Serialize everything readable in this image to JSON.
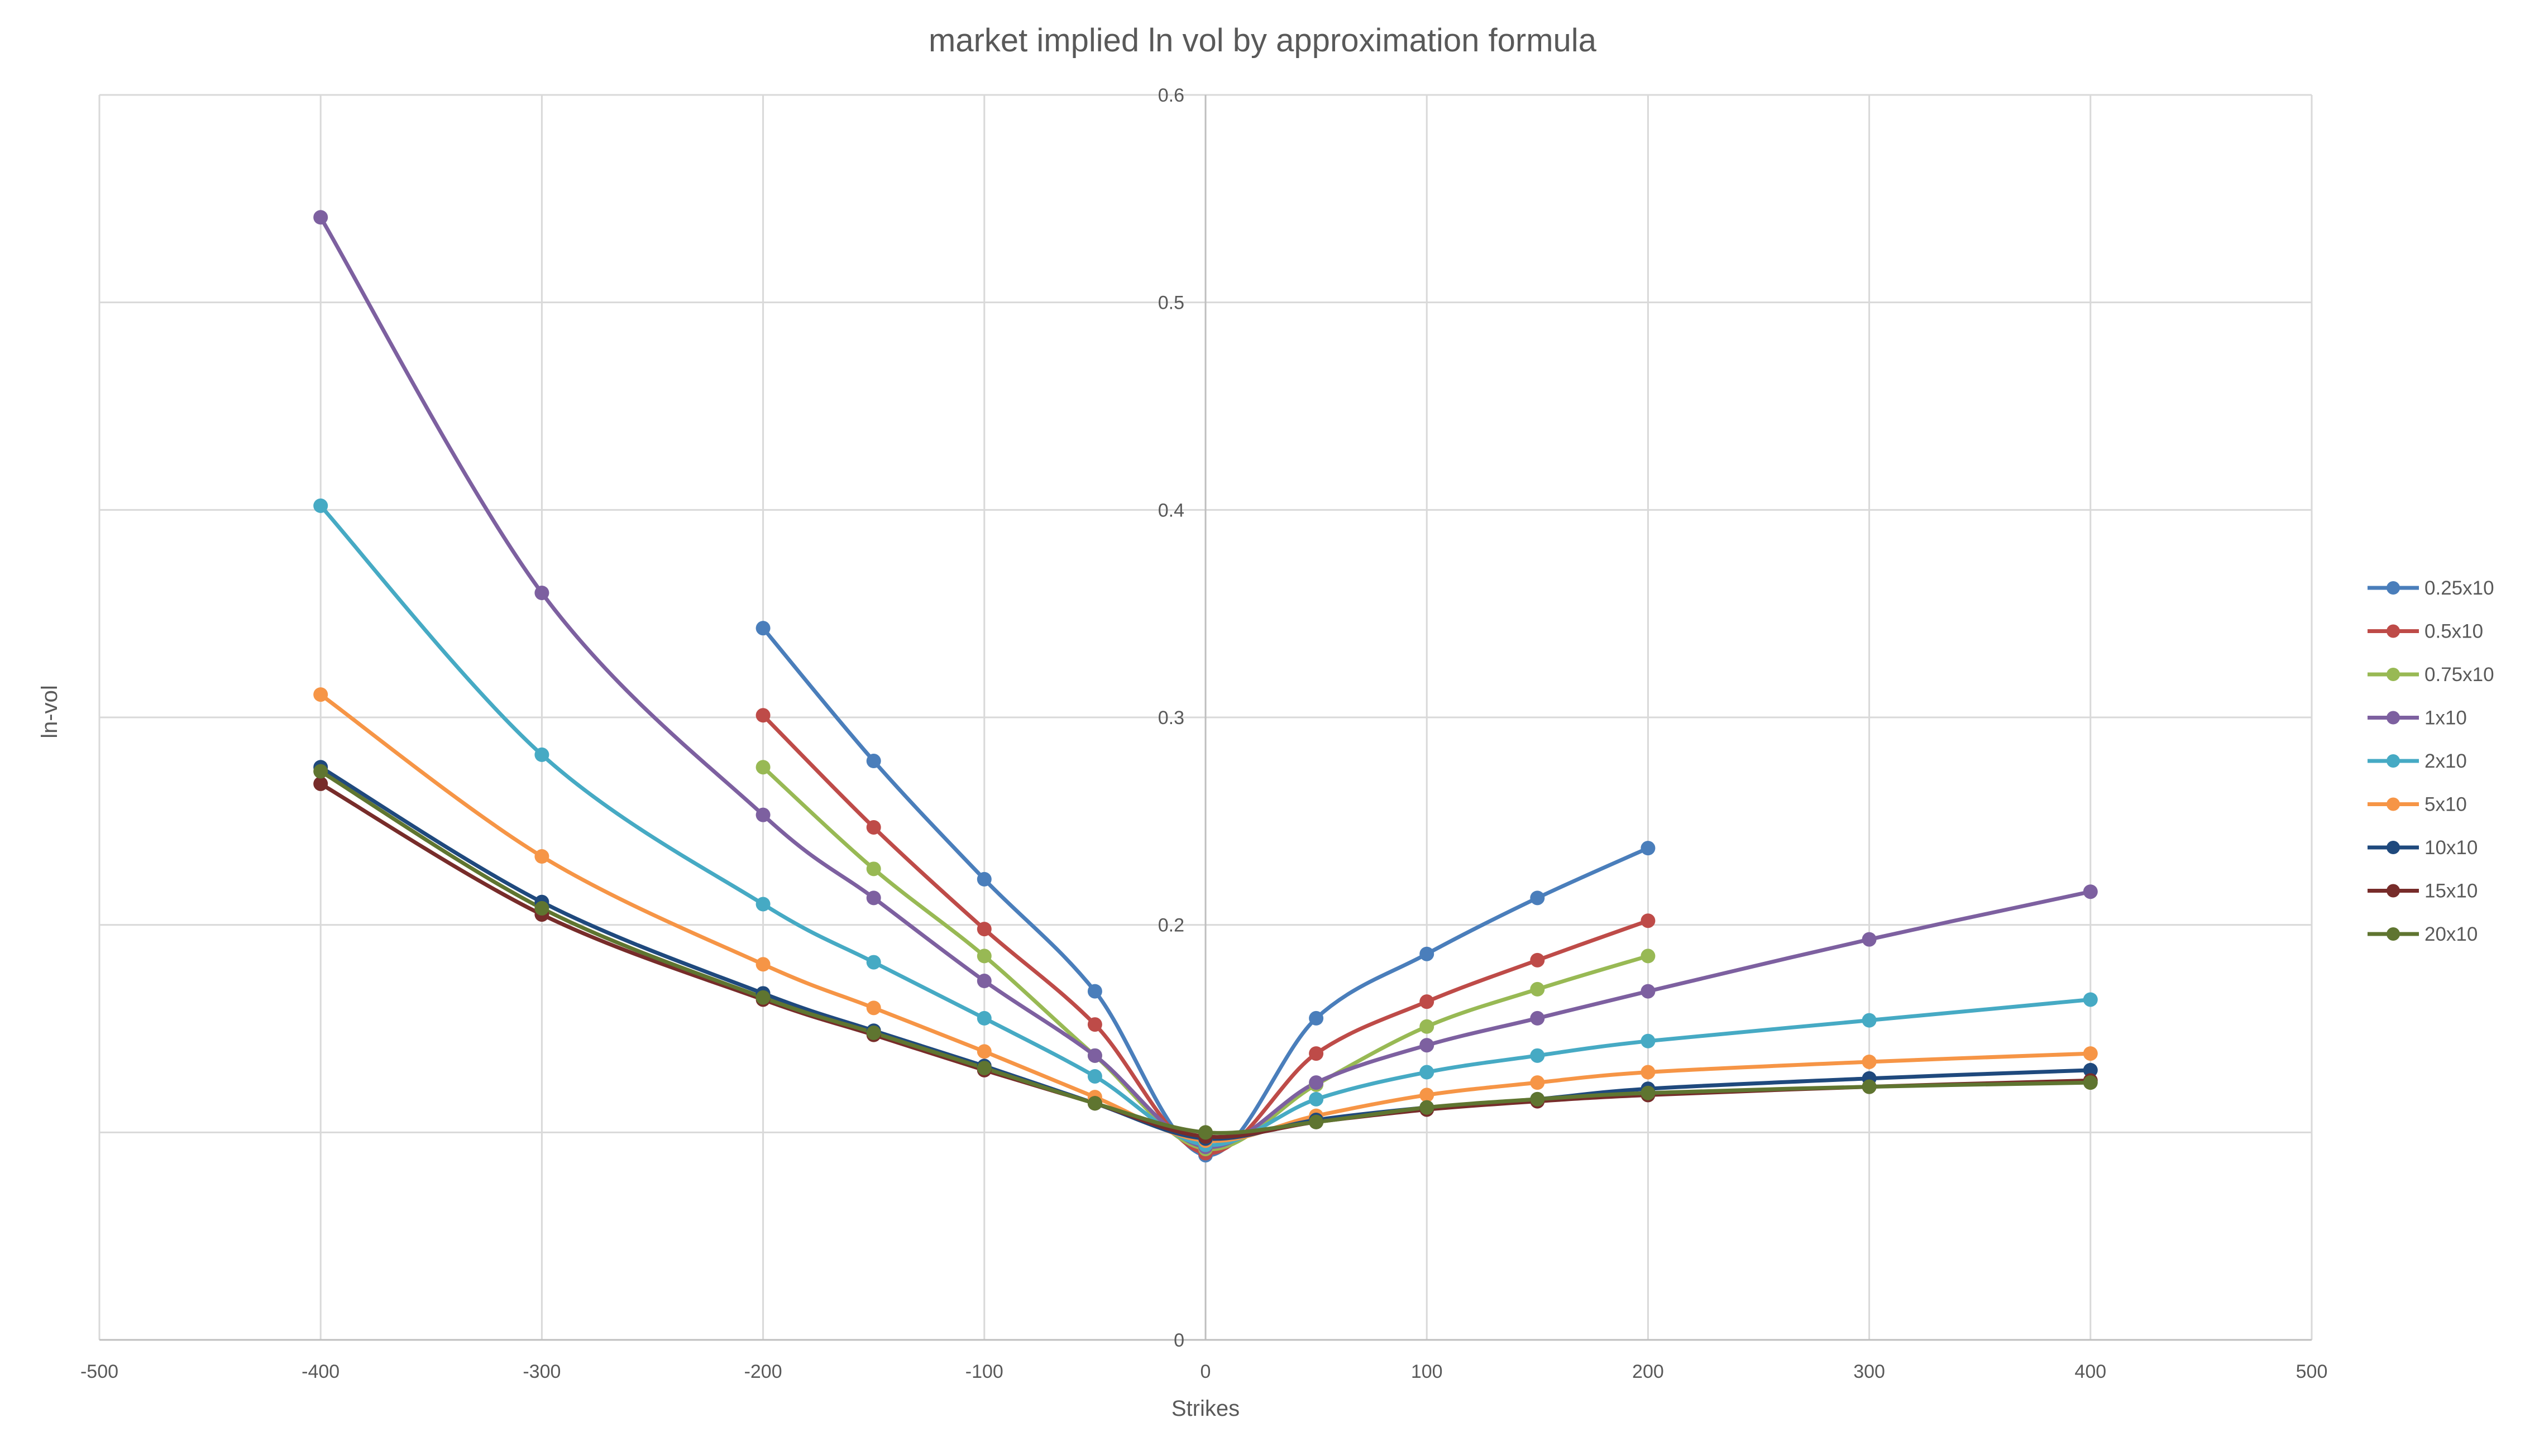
{
  "chart_data": {
    "type": "line",
    "title": "market implied ln vol by approximation formula",
    "xlabel": "Strikes",
    "ylabel": "ln-vol",
    "xlim": [
      -500,
      500
    ],
    "ylim": [
      0,
      0.6
    ],
    "x_ticks": [
      -500,
      -400,
      -300,
      -200,
      -100,
      0,
      100,
      200,
      300,
      400,
      500
    ],
    "x_tick_labels": [
      "-500",
      "-400",
      "-300",
      "-200",
      "-100",
      "0",
      "100",
      "200",
      "300",
      "400",
      "500"
    ],
    "y_ticks": [
      0,
      0.1,
      0.2,
      0.3,
      0.4,
      0.5,
      0.6
    ],
    "y_tick_labels": [
      "0",
      "",
      "0.2",
      "0.3",
      "0.4",
      "0.5",
      "0.6"
    ],
    "grid": true,
    "smooth": true,
    "legend_position": "right",
    "series": [
      {
        "name": "0.25x10",
        "color": "#4a7ebb",
        "x": [
          -200,
          -150,
          -100,
          -50,
          0,
          50,
          100,
          150,
          200
        ],
        "y": [
          0.343,
          0.279,
          0.222,
          0.168,
          0.089,
          0.155,
          0.186,
          0.213,
          0.237
        ]
      },
      {
        "name": "0.5x10",
        "color": "#be4b48",
        "x": [
          -200,
          -150,
          -100,
          -50,
          0,
          50,
          100,
          150,
          200
        ],
        "y": [
          0.301,
          0.247,
          0.198,
          0.152,
          0.09,
          0.138,
          0.163,
          0.183,
          0.202
        ]
      },
      {
        "name": "0.75x10",
        "color": "#98b954",
        "x": [
          -200,
          -150,
          -100,
          -50,
          0,
          50,
          100,
          150,
          200
        ],
        "y": [
          0.276,
          0.227,
          0.185,
          0.137,
          0.092,
          0.123,
          0.151,
          0.169,
          0.185
        ]
      },
      {
        "name": "1x10",
        "color": "#7d60a0",
        "x": [
          -400,
          -300,
          -200,
          -150,
          -100,
          -50,
          0,
          50,
          100,
          150,
          200,
          300,
          400
        ],
        "y": [
          0.541,
          0.36,
          0.253,
          0.213,
          0.173,
          0.137,
          0.093,
          0.124,
          0.142,
          0.155,
          0.168,
          0.193,
          0.216
        ]
      },
      {
        "name": "2x10",
        "color": "#46aac4",
        "x": [
          -400,
          -300,
          -200,
          -150,
          -100,
          -50,
          0,
          50,
          100,
          150,
          200,
          300,
          400
        ],
        "y": [
          0.402,
          0.282,
          0.21,
          0.182,
          0.155,
          0.127,
          0.094,
          0.116,
          0.129,
          0.137,
          0.144,
          0.154,
          0.164
        ]
      },
      {
        "name": "5x10",
        "color": "#f69546",
        "x": [
          -400,
          -300,
          -200,
          -150,
          -100,
          -50,
          0,
          50,
          100,
          150,
          200,
          300,
          400
        ],
        "y": [
          0.311,
          0.233,
          0.181,
          0.16,
          0.139,
          0.117,
          0.096,
          0.108,
          0.118,
          0.124,
          0.129,
          0.134,
          0.138
        ]
      },
      {
        "name": "10x10",
        "color": "#1f497d",
        "x": [
          -400,
          -300,
          -200,
          -150,
          -100,
          -50,
          0,
          50,
          100,
          150,
          200,
          300,
          400
        ],
        "y": [
          0.276,
          0.211,
          0.167,
          0.149,
          0.132,
          0.114,
          0.097,
          0.106,
          0.112,
          0.116,
          0.121,
          0.126,
          0.13
        ]
      },
      {
        "name": "15x10",
        "color": "#772c2a",
        "x": [
          -400,
          -300,
          -200,
          -150,
          -100,
          -50,
          0,
          50,
          100,
          150,
          200,
          300,
          400
        ],
        "y": [
          0.268,
          0.205,
          0.164,
          0.147,
          0.13,
          0.114,
          0.098,
          0.105,
          0.111,
          0.115,
          0.118,
          0.122,
          0.125
        ]
      },
      {
        "name": "20x10",
        "color": "#5f7530",
        "x": [
          -400,
          -300,
          -200,
          -150,
          -100,
          -50,
          0,
          50,
          100,
          150,
          200,
          300,
          400
        ],
        "y": [
          0.274,
          0.208,
          0.165,
          0.148,
          0.131,
          0.114,
          0.1,
          0.105,
          0.112,
          0.116,
          0.119,
          0.122,
          0.124
        ]
      }
    ]
  }
}
